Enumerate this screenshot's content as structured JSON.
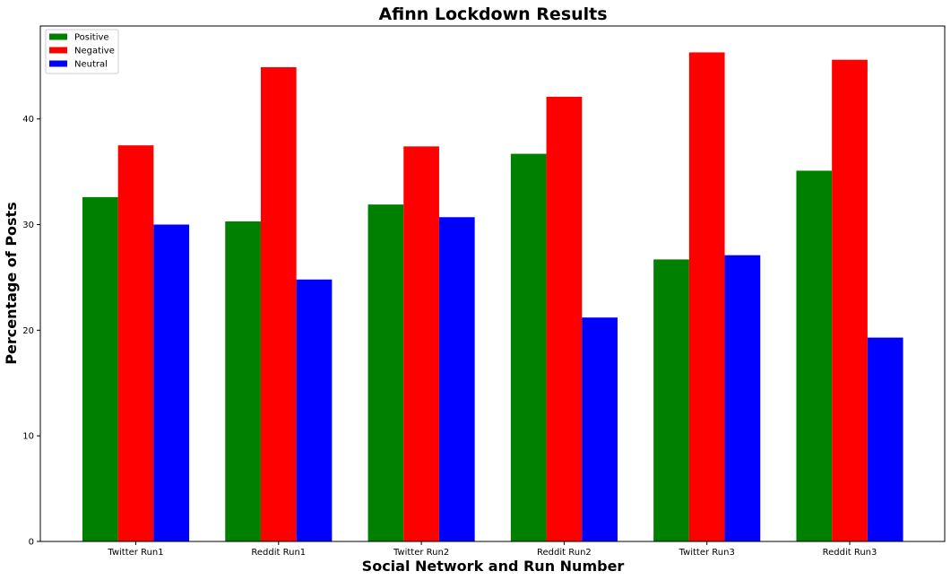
{
  "chart_data": {
    "type": "bar",
    "title": "Afinn Lockdown Results",
    "xlabel": "Social Network and Run Number",
    "ylabel": "Percentage of Posts",
    "categories": [
      "Twitter Run1",
      "Reddit Run1",
      "Twitter Run2",
      "Reddit Run2",
      "Twitter Run3",
      "Reddit Run3"
    ],
    "series": [
      {
        "name": "Positive",
        "color": "#008000",
        "values": [
          32.6,
          30.3,
          31.9,
          36.7,
          26.7,
          35.1
        ]
      },
      {
        "name": "Negative",
        "color": "#ff0000",
        "values": [
          37.5,
          44.9,
          37.4,
          42.1,
          46.3,
          45.6
        ]
      },
      {
        "name": "Neutral",
        "color": "#0000ff",
        "values": [
          30.0,
          24.8,
          30.7,
          21.2,
          27.1,
          19.3
        ]
      }
    ],
    "ylim": [
      0,
      48.8
    ],
    "yticks": [
      "0",
      "10",
      "20",
      "30",
      "40"
    ],
    "grid": false,
    "legend_position": "top-left"
  }
}
